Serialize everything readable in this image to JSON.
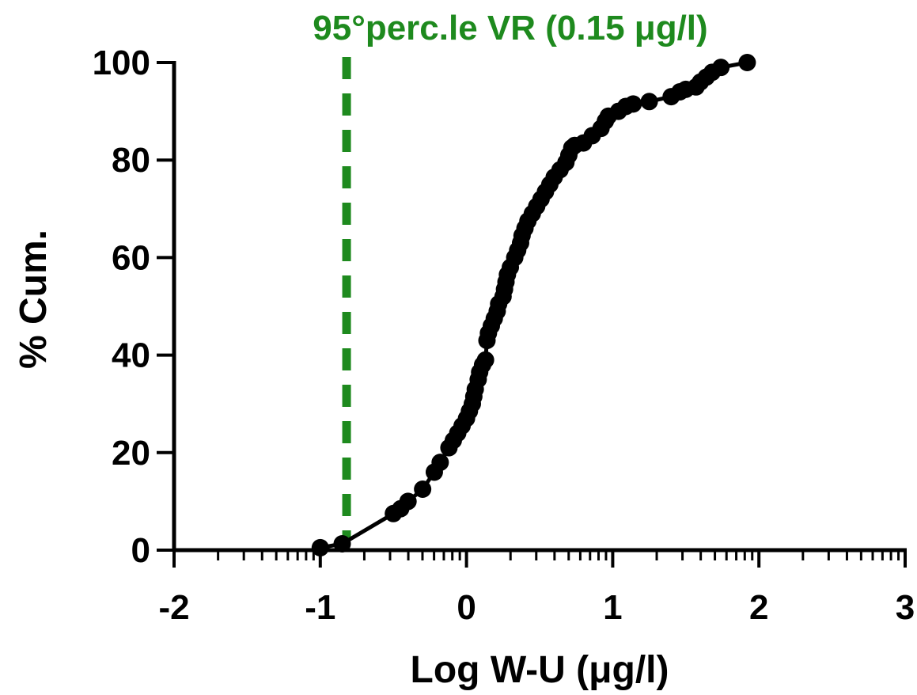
{
  "chart_data": {
    "type": "scatter",
    "xlabel": "Log W-U (μg/l)",
    "ylabel": "% Cum.",
    "xlim": [
      -2,
      3
    ],
    "ylim": [
      0,
      100
    ],
    "x_ticks": [
      -2,
      -1,
      0,
      1,
      2,
      3
    ],
    "y_ticks": [
      0,
      20,
      40,
      60,
      80,
      100
    ],
    "x_tick_labels": [
      "-2",
      "-1",
      "0",
      "1",
      "2",
      "3"
    ],
    "y_tick_labels": [
      "0",
      "20",
      "40",
      "60",
      "80",
      "100"
    ],
    "x_minor_log_ticks": true,
    "grid": false,
    "legend": "none",
    "marker_color": "#000000",
    "line_color": "#000000",
    "reference_line": {
      "x": -0.82,
      "label": "95°perc.le VR (0.15 μg/l)",
      "color": "#1e8a1e",
      "style": "dashed"
    },
    "series": [
      {
        "connected": true,
        "points": [
          [
            -1.0,
            0.5
          ],
          [
            -0.85,
            1.3
          ],
          [
            -0.5,
            7.5
          ],
          [
            -0.45,
            8.5
          ],
          [
            -0.4,
            10.0
          ],
          [
            -0.3,
            12.5
          ],
          [
            -0.22,
            16.0
          ],
          [
            -0.18,
            18.0
          ],
          [
            -0.12,
            21.0
          ],
          [
            -0.09,
            22.5
          ],
          [
            -0.06,
            24.0
          ],
          [
            -0.03,
            25.5
          ],
          [
            0.0,
            27.0
          ],
          [
            0.02,
            28.5
          ],
          [
            0.04,
            30.0
          ],
          [
            0.05,
            31.5
          ],
          [
            0.06,
            33.0
          ],
          [
            0.08,
            35.0
          ],
          [
            0.09,
            36.5
          ],
          [
            0.11,
            38.0
          ],
          [
            0.13,
            39.0
          ],
          [
            0.14,
            43.0
          ],
          [
            0.15,
            44.5
          ],
          [
            0.17,
            46.0
          ],
          [
            0.19,
            47.5
          ],
          [
            0.21,
            49.0
          ],
          [
            0.22,
            50.5
          ],
          [
            0.25,
            52.0
          ],
          [
            0.26,
            53.5
          ],
          [
            0.27,
            55.0
          ],
          [
            0.28,
            56.5
          ],
          [
            0.3,
            58.0
          ],
          [
            0.33,
            60.0
          ],
          [
            0.35,
            61.5
          ],
          [
            0.37,
            63.0
          ],
          [
            0.38,
            64.5
          ],
          [
            0.4,
            66.0
          ],
          [
            0.42,
            67.5
          ],
          [
            0.45,
            69.0
          ],
          [
            0.48,
            70.5
          ],
          [
            0.51,
            72.0
          ],
          [
            0.54,
            73.5
          ],
          [
            0.57,
            75.0
          ],
          [
            0.6,
            76.5
          ],
          [
            0.64,
            78.0
          ],
          [
            0.68,
            79.5
          ],
          [
            0.7,
            81.0
          ],
          [
            0.72,
            82.5
          ],
          [
            0.74,
            83.0
          ],
          [
            0.8,
            83.5
          ],
          [
            0.86,
            85.0
          ],
          [
            0.92,
            86.5
          ],
          [
            0.95,
            88.0
          ],
          [
            0.97,
            89.0
          ],
          [
            1.04,
            90.0
          ],
          [
            1.09,
            91.0
          ],
          [
            1.14,
            91.5
          ],
          [
            1.25,
            92.0
          ],
          [
            1.4,
            93.0
          ],
          [
            1.46,
            94.0
          ],
          [
            1.5,
            94.5
          ],
          [
            1.57,
            95.0
          ],
          [
            1.6,
            96.0
          ],
          [
            1.64,
            97.0
          ],
          [
            1.68,
            98.0
          ],
          [
            1.74,
            99.0
          ],
          [
            1.92,
            100.0
          ]
        ]
      }
    ]
  }
}
